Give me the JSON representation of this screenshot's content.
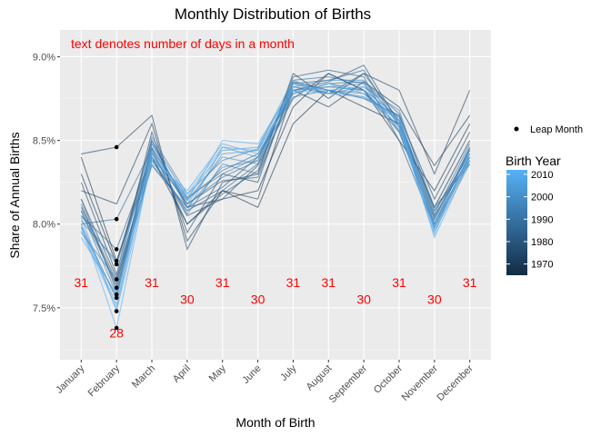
{
  "chart_data": {
    "type": "line",
    "title": "Monthly Distribution of Births",
    "xlabel": "Month of Birth",
    "ylabel": "Share of Annual Births",
    "categories": [
      "January",
      "February",
      "March",
      "April",
      "May",
      "June",
      "July",
      "August",
      "September",
      "October",
      "November",
      "December"
    ],
    "ylim": [
      0.0719,
      0.0916
    ],
    "yticks": [
      0.075,
      0.08,
      0.085,
      0.09
    ],
    "ytick_labels": [
      "7.5%",
      "8.0%",
      "8.5%",
      "9.0%"
    ],
    "grid": true,
    "annotation": "text denotes number of days in a month",
    "day_counts": [
      {
        "month": "January",
        "label": "31",
        "y": 0.0765
      },
      {
        "month": "February",
        "label": "28",
        "y": 0.0735
      },
      {
        "month": "March",
        "label": "31",
        "y": 0.0765
      },
      {
        "month": "April",
        "label": "30",
        "y": 0.0755
      },
      {
        "month": "May",
        "label": "31",
        "y": 0.0765
      },
      {
        "month": "June",
        "label": "30",
        "y": 0.0755
      },
      {
        "month": "July",
        "label": "31",
        "y": 0.0765
      },
      {
        "month": "August",
        "label": "31",
        "y": 0.0765
      },
      {
        "month": "September",
        "label": "30",
        "y": 0.0755
      },
      {
        "month": "October",
        "label": "31",
        "y": 0.0765
      },
      {
        "month": "November",
        "label": "30",
        "y": 0.0755
      },
      {
        "month": "December",
        "label": "31",
        "y": 0.0765
      }
    ],
    "leap_month_points": [
      0.0846,
      0.0803,
      0.0785,
      0.0778,
      0.0776,
      0.0767,
      0.0762,
      0.0758,
      0.0756,
      0.0748,
      0.0738
    ],
    "legend": {
      "point_label": "Leap Month",
      "color_title": "Birth Year",
      "color_ticks": [
        1970,
        1980,
        1990,
        2000,
        2010
      ],
      "color_range": [
        1965,
        2012
      ],
      "color_low": "#132B43",
      "color_high": "#56B1F7"
    },
    "series": [
      {
        "year": 1968,
        "values": [
          0.084,
          0.0778,
          0.084,
          0.08,
          0.082,
          0.081,
          0.086,
          0.088,
          0.087,
          0.086,
          0.081,
          0.085
        ]
      },
      {
        "year": 1970,
        "values": [
          0.083,
          0.0776,
          0.085,
          0.081,
          0.0815,
          0.082,
          0.087,
          0.089,
          0.088,
          0.085,
          0.082,
          0.086
        ]
      },
      {
        "year": 1972,
        "values": [
          0.082,
          0.0812,
          0.086,
          0.079,
          0.082,
          0.0815,
          0.088,
          0.087,
          0.0885,
          0.087,
          0.0835,
          0.0865
        ]
      },
      {
        "year": 1974,
        "values": [
          0.0842,
          0.0846,
          0.0865,
          0.0785,
          0.0825,
          0.083,
          0.089,
          0.0875,
          0.089,
          0.088,
          0.083,
          0.088
        ]
      },
      {
        "year": 1976,
        "values": [
          0.0825,
          0.077,
          0.0855,
          0.0795,
          0.083,
          0.0825,
          0.0885,
          0.088,
          0.0875,
          0.0865,
          0.0815,
          0.0855
        ]
      },
      {
        "year": 1978,
        "values": [
          0.0815,
          0.0768,
          0.084,
          0.0805,
          0.0815,
          0.0835,
          0.0875,
          0.089,
          0.088,
          0.0855,
          0.08,
          0.0845
        ]
      },
      {
        "year": 1980,
        "values": [
          0.081,
          0.0766,
          0.0835,
          0.081,
          0.0822,
          0.084,
          0.088,
          0.0885,
          0.0895,
          0.086,
          0.0805,
          0.084
        ]
      },
      {
        "year": 1982,
        "values": [
          0.0808,
          0.0764,
          0.0845,
          0.08,
          0.0818,
          0.0832,
          0.0888,
          0.0892,
          0.0888,
          0.085,
          0.0798,
          0.0838
        ]
      },
      {
        "year": 1984,
        "values": [
          0.0805,
          0.0785,
          0.0842,
          0.0812,
          0.0826,
          0.0828,
          0.0882,
          0.0878,
          0.089,
          0.0862,
          0.0808,
          0.0842
        ]
      },
      {
        "year": 1986,
        "values": [
          0.0812,
          0.0762,
          0.0838,
          0.0808,
          0.082,
          0.0836,
          0.0884,
          0.0886,
          0.0892,
          0.0858,
          0.0803,
          0.0846
        ]
      },
      {
        "year": 1988,
        "values": [
          0.08,
          0.0803,
          0.0845,
          0.0815,
          0.0832,
          0.0842,
          0.0878,
          0.0884,
          0.0885,
          0.0866,
          0.081,
          0.0836
        ]
      },
      {
        "year": 1990,
        "values": [
          0.0815,
          0.076,
          0.0848,
          0.0812,
          0.0828,
          0.0838,
          0.0886,
          0.0888,
          0.0884,
          0.0856,
          0.08,
          0.084
        ]
      },
      {
        "year": 1992,
        "values": [
          0.0802,
          0.0778,
          0.0843,
          0.0806,
          0.0836,
          0.083,
          0.088,
          0.0882,
          0.088,
          0.0864,
          0.0806,
          0.0848
        ]
      },
      {
        "year": 1994,
        "values": [
          0.0808,
          0.0758,
          0.085,
          0.0816,
          0.083,
          0.084,
          0.0876,
          0.088,
          0.0878,
          0.0862,
          0.0804,
          0.0844
        ]
      },
      {
        "year": 1996,
        "values": [
          0.0795,
          0.0767,
          0.0852,
          0.0818,
          0.0838,
          0.0845,
          0.0884,
          0.0878,
          0.0882,
          0.0868,
          0.0808,
          0.0838
        ]
      },
      {
        "year": 1998,
        "values": [
          0.0798,
          0.0756,
          0.0846,
          0.081,
          0.0834,
          0.0838,
          0.0882,
          0.0886,
          0.0886,
          0.086,
          0.0798,
          0.0842
        ]
      },
      {
        "year": 2000,
        "values": [
          0.0805,
          0.0776,
          0.084,
          0.0814,
          0.084,
          0.0836,
          0.0878,
          0.0884,
          0.088,
          0.0858,
          0.0802,
          0.0846
        ]
      },
      {
        "year": 2002,
        "values": [
          0.08,
          0.0755,
          0.0848,
          0.0812,
          0.0842,
          0.0844,
          0.088,
          0.0882,
          0.0884,
          0.0862,
          0.08,
          0.084
        ]
      },
      {
        "year": 2004,
        "values": [
          0.0792,
          0.0758,
          0.0836,
          0.0808,
          0.0846,
          0.084,
          0.0884,
          0.088,
          0.0876,
          0.0864,
          0.0796,
          0.0836
        ]
      },
      {
        "year": 2006,
        "values": [
          0.0798,
          0.0752,
          0.0842,
          0.0816,
          0.0844,
          0.0846,
          0.0886,
          0.0878,
          0.088,
          0.0858,
          0.0794,
          0.0844
        ]
      },
      {
        "year": 2008,
        "values": [
          0.0804,
          0.0748,
          0.0838,
          0.082,
          0.0848,
          0.0842,
          0.0878,
          0.0884,
          0.0878,
          0.0856,
          0.0798,
          0.084
        ]
      },
      {
        "year": 2010,
        "values": [
          0.0796,
          0.075,
          0.0844,
          0.0814,
          0.085,
          0.0848,
          0.0882,
          0.088,
          0.0882,
          0.086,
          0.0792,
          0.0838
        ]
      },
      {
        "year": 2012,
        "values": [
          0.08,
          0.0738,
          0.084,
          0.0818,
          0.0846,
          0.0844,
          0.088,
          0.0878,
          0.0876,
          0.0862,
          0.0796,
          0.0842
        ]
      }
    ]
  }
}
